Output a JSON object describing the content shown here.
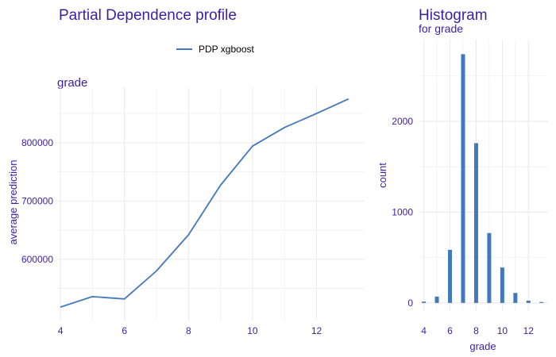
{
  "colors": {
    "text": "#3b1fa3",
    "line": "#4378bf",
    "bar": "#4378bf",
    "grid": "#ebebeb",
    "legend_text": "#000000"
  },
  "chart_data": [
    {
      "type": "line",
      "title": "Partial Dependence profile",
      "subtitle": "grade",
      "xlabel": "",
      "ylabel": "average prediction",
      "xlim": [
        3.9,
        13.5
      ],
      "ylim": [
        495000,
        895000
      ],
      "x_ticks": [
        4,
        6,
        8,
        10,
        12
      ],
      "x_tick_labels": [
        "4",
        "6",
        "8",
        "10",
        "12"
      ],
      "y_ticks": [
        600000,
        700000,
        800000
      ],
      "y_tick_labels": [
        "600000",
        "700000",
        "800000"
      ],
      "grid": true,
      "legend_position": "top",
      "series": [
        {
          "name": "PDP xgboost",
          "x": [
            4,
            5,
            6,
            7,
            8,
            9,
            10,
            11,
            12,
            13
          ],
          "values": [
            518000,
            536000,
            532000,
            580000,
            642000,
            727000,
            794000,
            826000,
            850000,
            875000
          ]
        }
      ]
    },
    {
      "type": "bar",
      "title": "Histogram",
      "subtitle": "for grade",
      "xlabel": "grade",
      "ylabel": "count",
      "xlim": [
        3.6,
        13.5
      ],
      "ylim": [
        -80,
        2900
      ],
      "x_ticks": [
        4,
        6,
        8,
        10,
        12
      ],
      "x_tick_labels": [
        "4",
        "6",
        "8",
        "10",
        "12"
      ],
      "y_ticks": [
        0,
        1000,
        2000
      ],
      "y_tick_labels": [
        "0",
        "1000",
        "2000"
      ],
      "grid": true,
      "categories": [
        4,
        5,
        6,
        7,
        8,
        9,
        10,
        11,
        12,
        13
      ],
      "values": [
        15,
        70,
        585,
        2740,
        1760,
        770,
        390,
        110,
        25,
        10
      ]
    }
  ]
}
